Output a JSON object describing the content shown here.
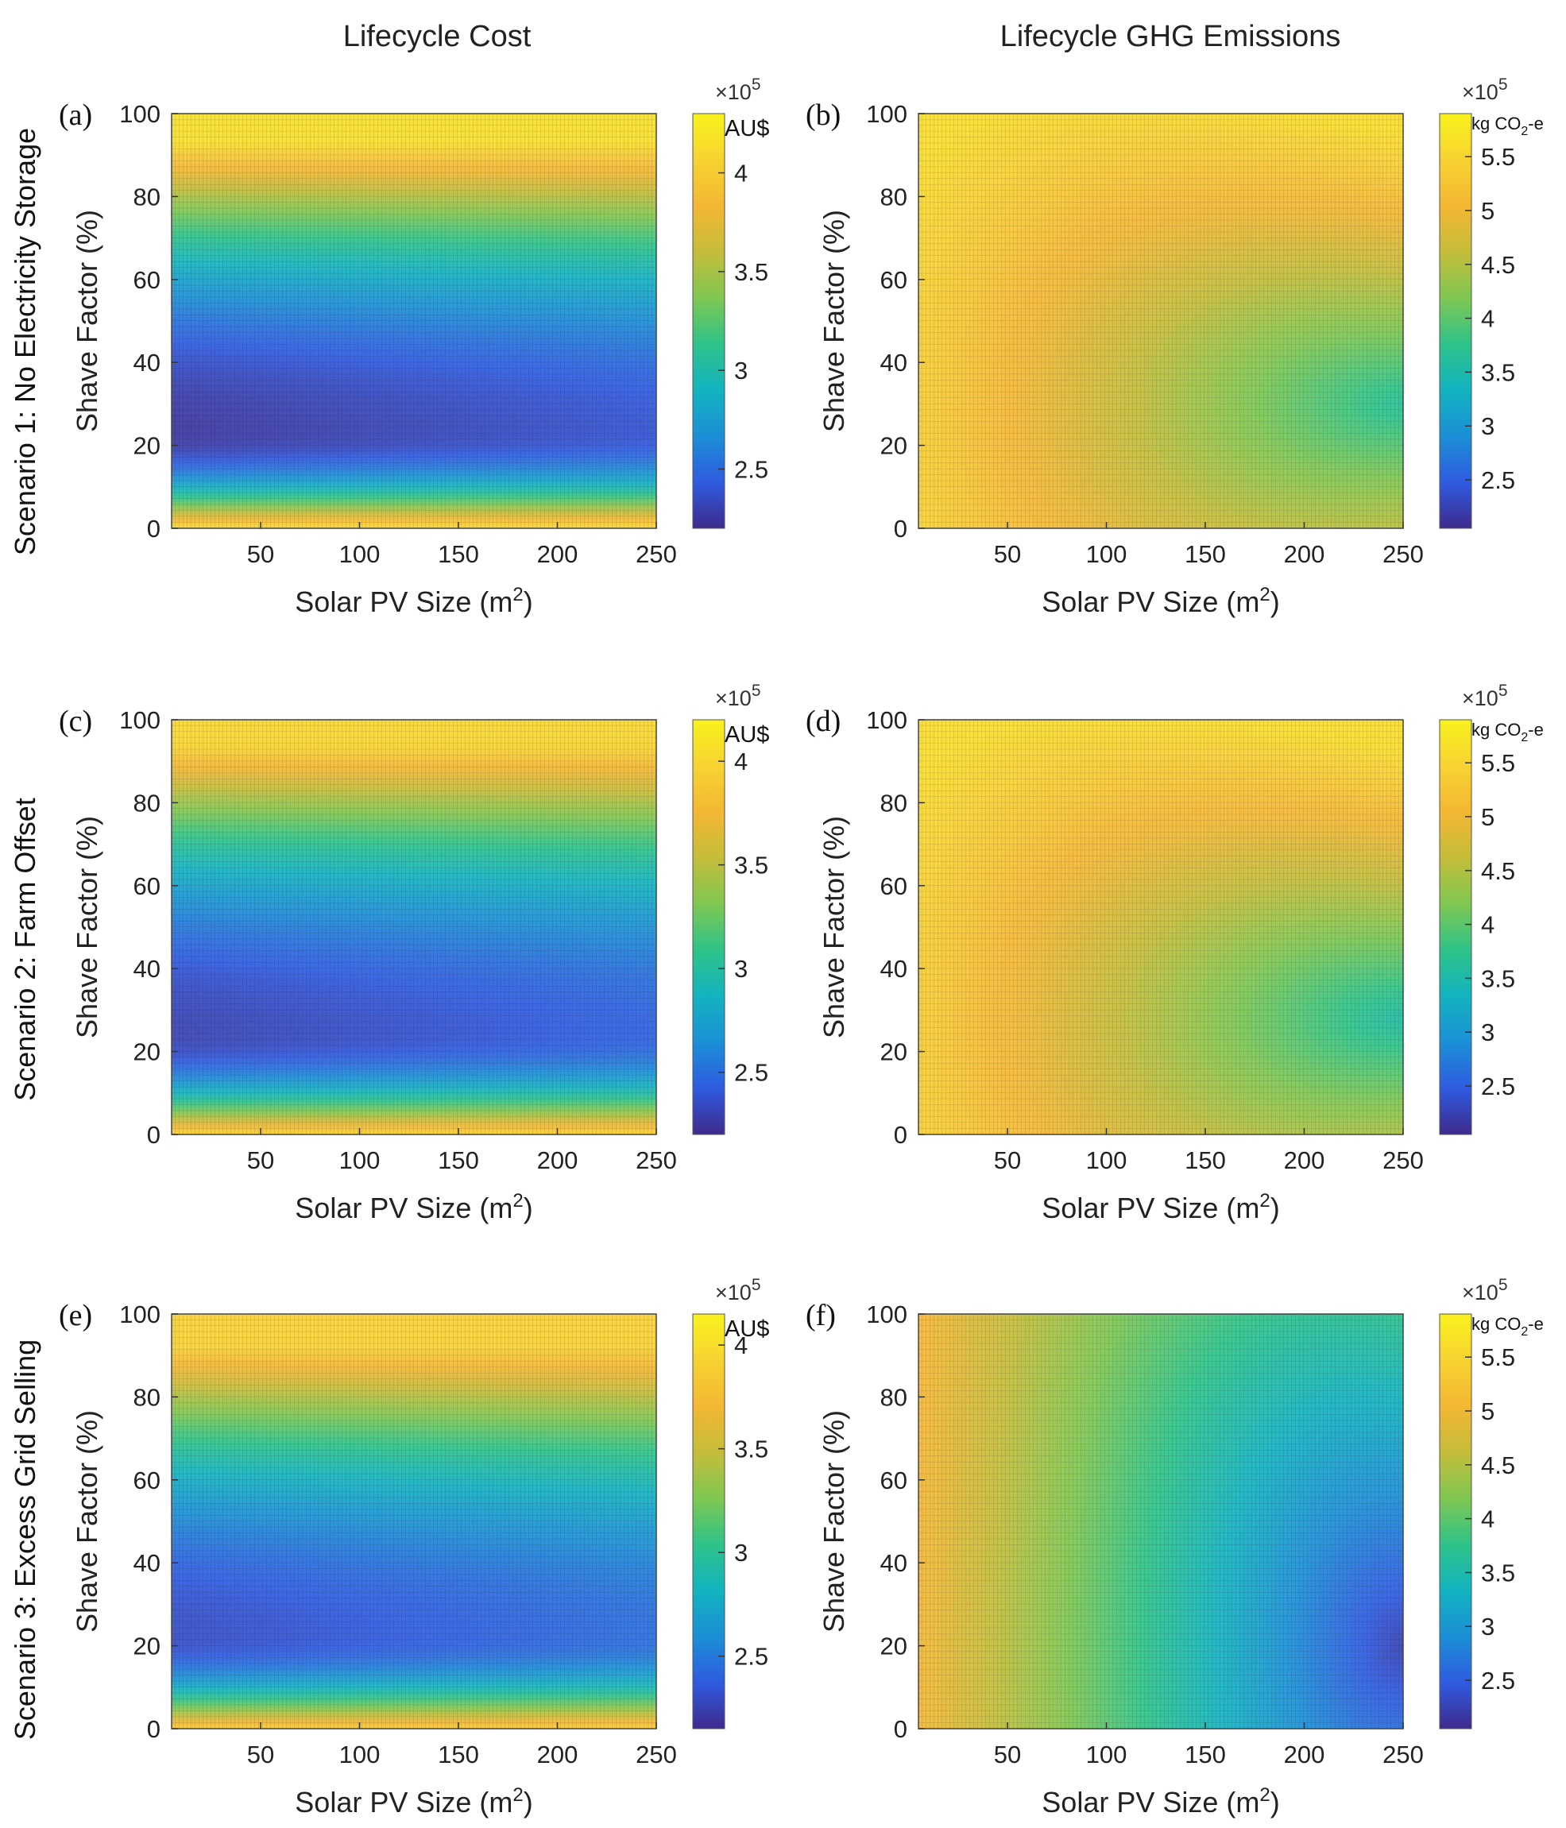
{
  "chart_data": [
    {
      "id": "a",
      "type": "heatmap",
      "panel_label": "(a)",
      "column_title": "Lifecycle Cost",
      "row_title": "Scenario 1: No Electricity Storage",
      "xlabel": "Solar PV Size (m",
      "xlabel_sup": "2",
      "xlabel_end": ")",
      "ylabel": "Shave Factor (%)",
      "xticks": [
        "50",
        "100",
        "150",
        "200",
        "250"
      ],
      "xlim": [
        5,
        250
      ],
      "yticks": [
        "0",
        "20",
        "40",
        "60",
        "80",
        "100"
      ],
      "ylim": [
        0,
        100
      ],
      "colorbar": {
        "unit": "AU$",
        "multiplier": "×10",
        "exponent": "5",
        "ticks": [
          "2.5",
          "3",
          "3.5",
          "4"
        ],
        "range": [
          2.2,
          4.3
        ]
      },
      "surface": {
        "kind": "cost",
        "min_shave_factor": 23,
        "min_value": 2.25,
        "max_value": 4.15
      }
    },
    {
      "id": "b",
      "type": "heatmap",
      "panel_label": "(b)",
      "column_title": "Lifecycle GHG Emissions",
      "xlabel": "Solar PV Size (m",
      "xlabel_sup": "2",
      "xlabel_end": ")",
      "ylabel": "Shave Factor (%)",
      "xticks": [
        "50",
        "100",
        "150",
        "200",
        "250"
      ],
      "xlim": [
        5,
        250
      ],
      "yticks": [
        "0",
        "20",
        "40",
        "60",
        "80",
        "100"
      ],
      "ylim": [
        0,
        100
      ],
      "colorbar": {
        "unit_main": "kg CO",
        "unit_sub": "2",
        "unit_end": "-e",
        "multiplier": "×10",
        "exponent": "5",
        "ticks": [
          "2.5",
          "3",
          "3.5",
          "4",
          "4.5",
          "5",
          "5.5"
        ],
        "range": [
          2.05,
          5.9
        ]
      },
      "surface": {
        "kind": "emissions",
        "center_shave_factor": 30,
        "min_value": 3.65,
        "max_value": 5.6
      }
    },
    {
      "id": "c",
      "type": "heatmap",
      "panel_label": "(c)",
      "row_title": "Scenario 2: Farm Offset",
      "xlabel": "Solar PV Size (m",
      "xlabel_sup": "2",
      "xlabel_end": ")",
      "ylabel": "Shave Factor (%)",
      "xticks": [
        "50",
        "100",
        "150",
        "200",
        "250"
      ],
      "xlim": [
        5,
        250
      ],
      "yticks": [
        "0",
        "20",
        "40",
        "60",
        "80",
        "100"
      ],
      "ylim": [
        0,
        100
      ],
      "colorbar": {
        "unit": "AU$",
        "multiplier": "×10",
        "exponent": "5",
        "ticks": [
          "2.5",
          "3",
          "3.5",
          "4"
        ],
        "range": [
          2.2,
          4.2
        ]
      },
      "surface": {
        "kind": "cost",
        "min_shave_factor": 24,
        "min_value": 2.3,
        "max_value": 4.0
      }
    },
    {
      "id": "d",
      "type": "heatmap",
      "panel_label": "(d)",
      "xlabel": "Solar PV Size (m",
      "xlabel_sup": "2",
      "xlabel_end": ")",
      "ylabel": "Shave Factor (%)",
      "xticks": [
        "50",
        "100",
        "150",
        "200",
        "250"
      ],
      "xlim": [
        5,
        250
      ],
      "yticks": [
        "0",
        "20",
        "40",
        "60",
        "80",
        "100"
      ],
      "ylim": [
        0,
        100
      ],
      "colorbar": {
        "unit_main": "kg CO",
        "unit_sub": "2",
        "unit_end": "-e",
        "multiplier": "×10",
        "exponent": "5",
        "ticks": [
          "2.5",
          "3",
          "3.5",
          "4",
          "4.5",
          "5",
          "5.5"
        ],
        "range": [
          2.05,
          5.9
        ]
      },
      "surface": {
        "kind": "emissions",
        "center_shave_factor": 28,
        "min_value": 3.55,
        "max_value": 5.6
      }
    },
    {
      "id": "e",
      "type": "heatmap",
      "panel_label": "(e)",
      "row_title": "Scenario 3: Excess Grid Selling",
      "xlabel": "Solar PV Size (m",
      "xlabel_sup": "2",
      "xlabel_end": ")",
      "ylabel": "Shave Factor (%)",
      "xticks": [
        "50",
        "100",
        "150",
        "200",
        "250"
      ],
      "xlim": [
        5,
        250
      ],
      "yticks": [
        "0",
        "20",
        "40",
        "60",
        "80",
        "100"
      ],
      "ylim": [
        0,
        100
      ],
      "colorbar": {
        "unit": "AU$",
        "multiplier": "×10",
        "exponent": "5",
        "ticks": [
          "2.5",
          "3",
          "3.5",
          "4"
        ],
        "range": [
          2.15,
          4.15
        ]
      },
      "surface": {
        "kind": "cost",
        "min_shave_factor": 22,
        "min_value": 2.3,
        "max_value": 3.9
      }
    },
    {
      "id": "f",
      "type": "heatmap",
      "panel_label": "(f)",
      "xlabel": "Solar PV Size (m",
      "xlabel_sup": "2",
      "xlabel_end": ")",
      "ylabel": "Shave Factor (%)",
      "xticks": [
        "50",
        "100",
        "150",
        "200",
        "250"
      ],
      "xlim": [
        5,
        250
      ],
      "yticks": [
        "0",
        "20",
        "40",
        "60",
        "80",
        "100"
      ],
      "ylim": [
        0,
        100
      ],
      "colorbar": {
        "unit_main": "kg CO",
        "unit_sub": "2",
        "unit_end": "-e",
        "multiplier": "×10",
        "exponent": "5",
        "ticks": [
          "2.5",
          "3",
          "3.5",
          "4",
          "4.5",
          "5",
          "5.5"
        ],
        "range": [
          2.05,
          5.9
        ]
      },
      "surface": {
        "kind": "emissions_linear",
        "center_shave_factor": 20,
        "min_value": 2.25,
        "max_value": 5.05
      }
    }
  ],
  "colormap": [
    "#3e2a8c",
    "#2f5be0",
    "#1b8fd6",
    "#13b3c0",
    "#2ec389",
    "#7fc752",
    "#c4bd3a",
    "#f4b733",
    "#f7d332",
    "#f9f21c"
  ]
}
